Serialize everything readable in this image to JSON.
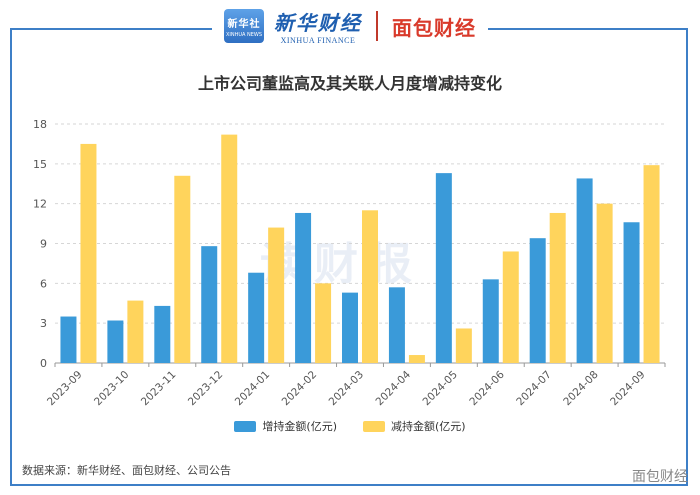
{
  "header": {
    "xinhua_badge": "新华社",
    "xinhua_badge_sub": "XINHUA NEWS",
    "brand_cn": "新华财经",
    "brand_en": "XINHUA FINANCE",
    "partner_logo": "面包财经"
  },
  "watermark": "读财报",
  "corner_mark": "面包财经",
  "source": "数据来源：新华财经、面包财经、公司公告",
  "colors": {
    "increase": "#3a9ad9",
    "decrease": "#ffd45c",
    "frame": "#3d7fc7"
  },
  "chart_data": {
    "type": "bar",
    "title": "上市公司董监高及其关联人月度增减持变化",
    "categories": [
      "2023-09",
      "2023-10",
      "2023-11",
      "2023-12",
      "2024-01",
      "2024-02",
      "2024-03",
      "2024-04",
      "2024-05",
      "2024-06",
      "2024-07",
      "2024-08",
      "2024-09"
    ],
    "series": [
      {
        "name": "增持金额(亿元)",
        "values": [
          3.5,
          3.2,
          4.3,
          8.8,
          6.8,
          11.3,
          5.3,
          5.7,
          14.3,
          6.3,
          9.4,
          13.9,
          10.6
        ]
      },
      {
        "name": "减持金额(亿元)",
        "values": [
          16.5,
          4.7,
          14.1,
          17.2,
          10.2,
          6.0,
          11.5,
          0.6,
          2.6,
          8.4,
          11.3,
          12.0,
          14.9
        ]
      }
    ],
    "yticks": [
      0,
      3,
      6,
      9,
      12,
      15,
      18
    ],
    "ylim": [
      0,
      18
    ],
    "grid": "horizontal-dashed",
    "legend_position": "bottom"
  }
}
